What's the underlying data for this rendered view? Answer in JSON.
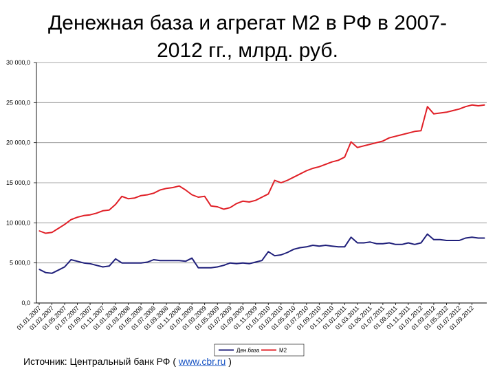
{
  "title_line1": "Денежная база и агрегат  М2 в РФ в 2007-",
  "title_line2": "2012 гг., млрд. руб.",
  "source": {
    "prefix": "Источник: Центральный банк РФ ( ",
    "link": "www.cbr.ru",
    "suffix": " )"
  },
  "chart_data": {
    "type": "line",
    "ylim": [
      0,
      30000
    ],
    "y_ticks": [
      0,
      5000,
      10000,
      15000,
      20000,
      25000,
      30000
    ],
    "y_tick_labels": [
      "0,0",
      "5 000,0",
      "10 000,0",
      "15 000,0",
      "20 000,0",
      "25 000,0",
      "30 000,0"
    ],
    "x_tick_labels": [
      "01.01.2007",
      "01.03.2007",
      "01.05.2007",
      "01.07.2007",
      "01.09.2007",
      "01.11.2007",
      "01.01.2008",
      "01.03.2008",
      "01.05.2008",
      "01.07.2008",
      "01.09.2008",
      "01.11.2008",
      "01.01.2009",
      "01.03.2009",
      "01.05.2009",
      "01.07.2009",
      "01.09.2009",
      "01.11.2009",
      "01.01.2010",
      "01.03.2010",
      "01.05.2010",
      "01.07.2010",
      "01.09.2010",
      "01.11.2010",
      "01.01.2011",
      "01.03.2011",
      "01.05.2011",
      "01.07.2011",
      "01.09.2011",
      "01.11.2011",
      "01.01.2012",
      "01.03.2012",
      "01.05.2012",
      "01.07.2012",
      "01.09.2012"
    ],
    "grid": true,
    "legend_position": "bottom-right",
    "series": [
      {
        "name": "Ден.база",
        "color": "#1f1f7a",
        "values": [
          4200,
          3800,
          3700,
          4100,
          4500,
          5400,
          5200,
          5000,
          4900,
          4700,
          4500,
          4600,
          5500,
          5000,
          5000,
          5000,
          5000,
          5100,
          5400,
          5300,
          5300,
          5300,
          5300,
          5200,
          5600,
          4400,
          4400,
          4400,
          4500,
          4700,
          5000,
          4900,
          5000,
          4900,
          5100,
          5300,
          6400,
          5900,
          6000,
          6300,
          6700,
          6900,
          7000,
          7200,
          7100,
          7200,
          7100,
          7000,
          7000,
          8200,
          7500,
          7500,
          7600,
          7400,
          7400,
          7500,
          7300,
          7300,
          7500,
          7300,
          7500,
          8600,
          7900,
          7900,
          7800,
          7800,
          7800,
          8100,
          8200,
          8100,
          8100
        ]
      },
      {
        "name": "М2",
        "color": "#e01f26",
        "values": [
          9000,
          8700,
          8800,
          9300,
          9800,
          10400,
          10700,
          10900,
          11000,
          11200,
          11500,
          11600,
          12300,
          13300,
          13000,
          13100,
          13400,
          13500,
          13700,
          14100,
          14300,
          14400,
          14600,
          14100,
          13500,
          13200,
          13300,
          12100,
          12000,
          11700,
          11900,
          12400,
          12700,
          12600,
          12800,
          13200,
          13600,
          15300,
          15000,
          15300,
          15700,
          16100,
          16500,
          16800,
          17000,
          17300,
          17600,
          17800,
          18200,
          20100,
          19400,
          19600,
          19800,
          20000,
          20200,
          20600,
          20800,
          21000,
          21200,
          21400,
          21500,
          24500,
          23600,
          23700,
          23800,
          24000,
          24200,
          24500,
          24700,
          24600,
          24700
        ]
      }
    ]
  }
}
